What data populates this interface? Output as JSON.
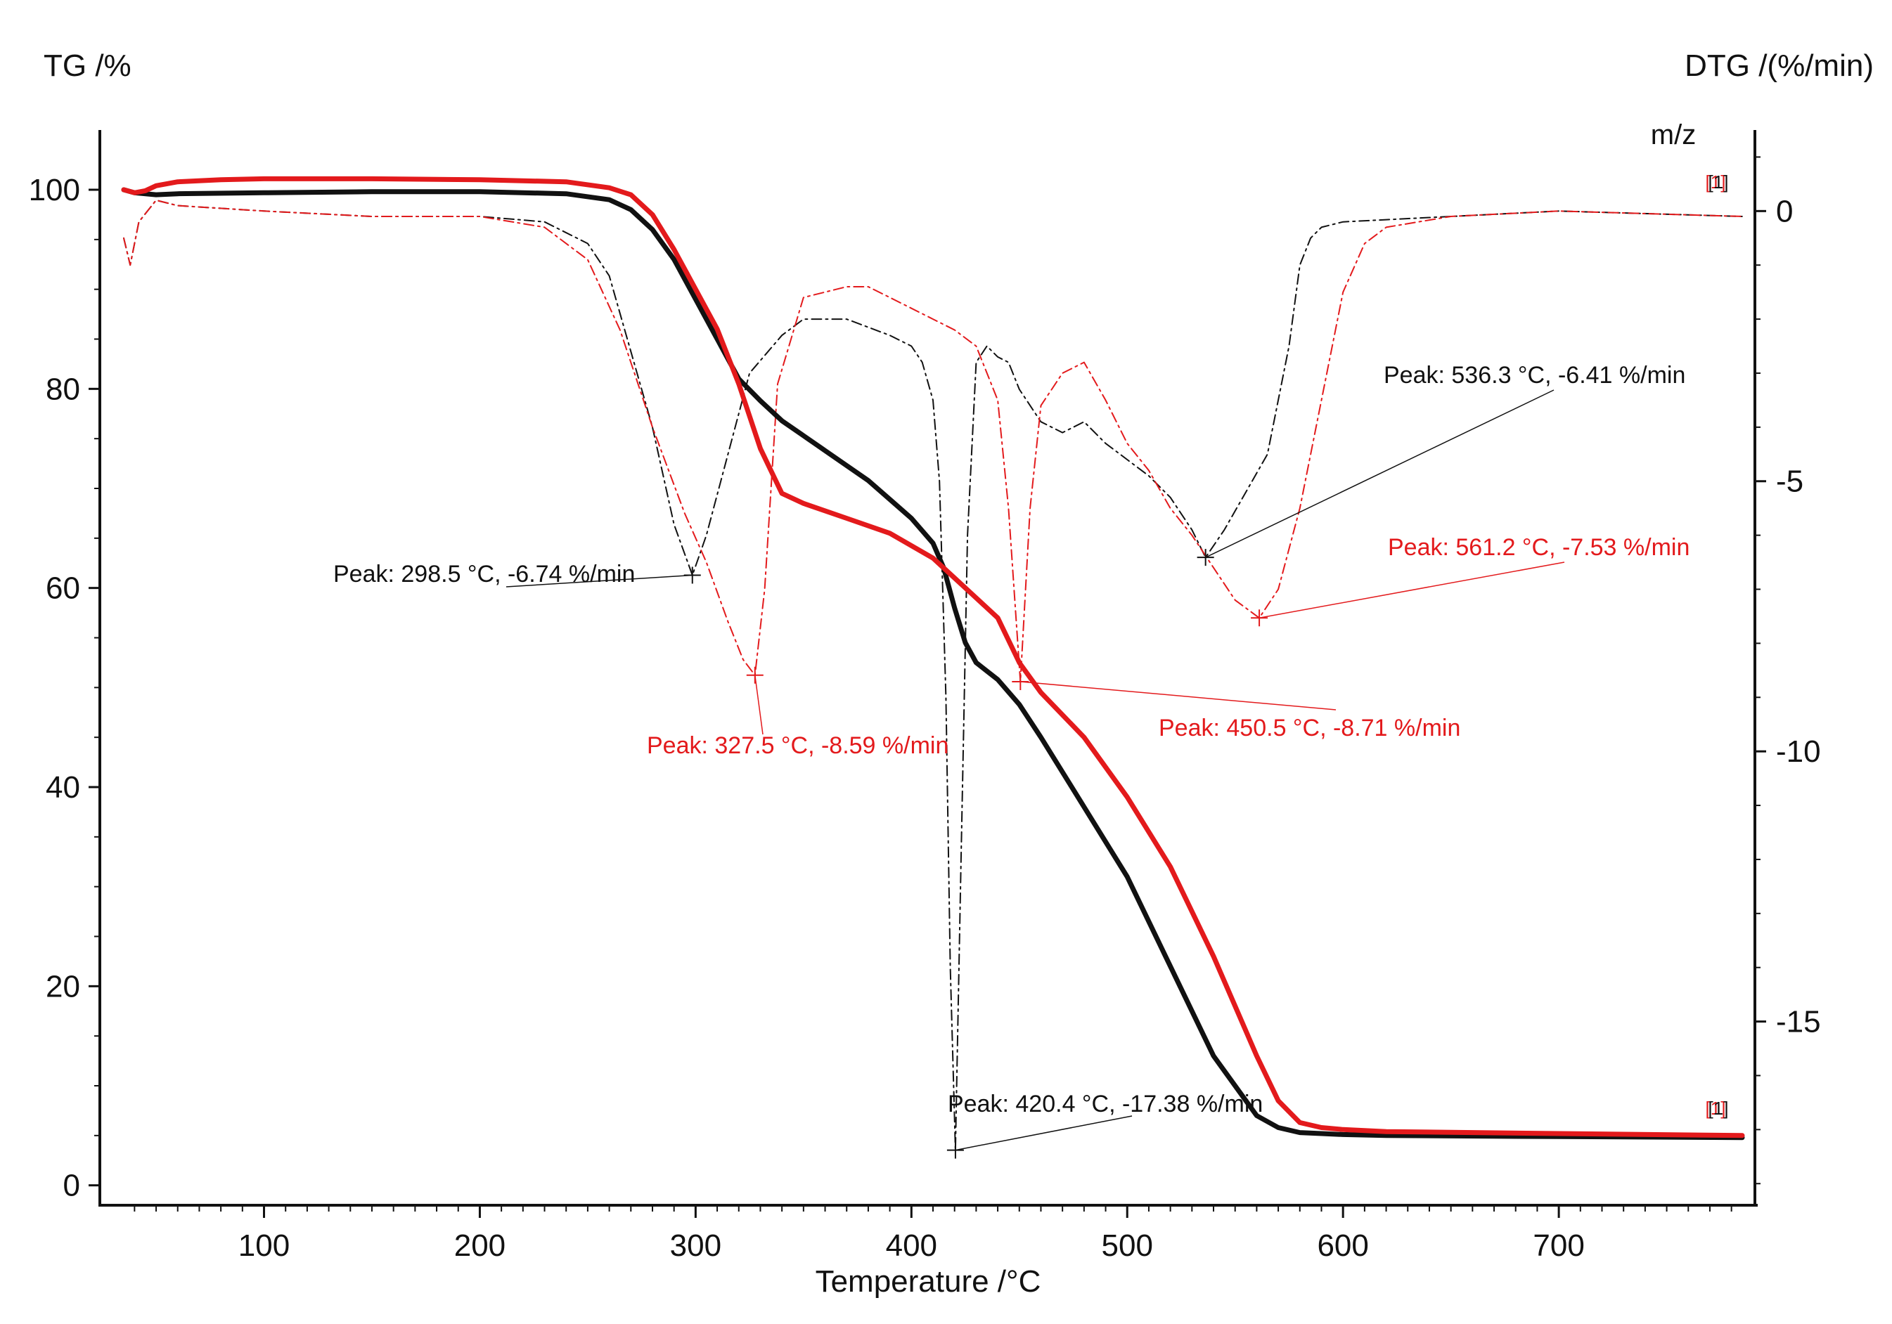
{
  "chart_data": {
    "type": "line",
    "title": "",
    "xlabel": "Temperature /°C",
    "ylabel_left": "TG /%",
    "ylabel_right": "DTG /(%/min)",
    "right_axis_note": "m/z",
    "xlim": [
      35,
      785
    ],
    "ylim_left": [
      -2,
      106
    ],
    "ylim_right": [
      -18.4,
      1.5
    ],
    "x_ticks": [
      100,
      200,
      300,
      400,
      500,
      600,
      700
    ],
    "y_left_ticks": [
      0,
      20,
      40,
      60,
      80,
      100
    ],
    "y_right_ticks": [
      0,
      -5,
      -10,
      -15
    ],
    "end_markers": [
      "[1]",
      "[1]",
      "[1]",
      "[1]"
    ],
    "colors": {
      "black": "#111111",
      "red": "#e31a1c",
      "grid_axis": "#111111"
    },
    "series": [
      {
        "name": "TG black",
        "axis": "left",
        "style": "solid-thick",
        "color": "#111111",
        "x": [
          35,
          40,
          50,
          60,
          100,
          150,
          200,
          240,
          260,
          270,
          280,
          290,
          300,
          310,
          320,
          330,
          340,
          360,
          380,
          400,
          410,
          415,
          420,
          425,
          430,
          440,
          450,
          460,
          480,
          500,
          520,
          540,
          560,
          570,
          580,
          590,
          600,
          620,
          700,
          785
        ],
        "y": [
          100,
          99.7,
          99.5,
          99.6,
          99.7,
          99.8,
          99.8,
          99.6,
          99,
          98,
          96,
          93,
          89,
          85,
          81,
          78.8,
          76.8,
          73.8,
          70.8,
          67,
          64.5,
          62,
          58,
          54.5,
          52.5,
          50.8,
          48.3,
          45,
          38,
          31,
          22,
          13,
          7,
          5.8,
          5.3,
          5.2,
          5.1,
          5.0,
          4.9,
          4.8
        ]
      },
      {
        "name": "TG red",
        "axis": "left",
        "style": "solid-thick",
        "color": "#e31a1c",
        "x": [
          35,
          40,
          45,
          50,
          60,
          80,
          100,
          150,
          200,
          240,
          260,
          270,
          280,
          290,
          300,
          310,
          320,
          330,
          340,
          350,
          370,
          390,
          410,
          420,
          430,
          440,
          450,
          460,
          480,
          500,
          520,
          540,
          560,
          570,
          580,
          590,
          600,
          620,
          700,
          785
        ],
        "y": [
          100,
          99.7,
          99.9,
          100.4,
          100.8,
          101,
          101.1,
          101.1,
          101,
          100.8,
          100.2,
          99.5,
          97.5,
          94,
          90,
          86,
          80.5,
          74,
          69.5,
          68.5,
          67,
          65.5,
          63,
          61,
          59,
          57,
          52.5,
          49.5,
          45,
          39,
          32,
          23,
          13,
          8.5,
          6.3,
          5.8,
          5.6,
          5.4,
          5.2,
          5.0
        ]
      },
      {
        "name": "DTG black",
        "axis": "right",
        "style": "dashed",
        "color": "#111111",
        "peaks": [
          {
            "x": 298.5,
            "y": -6.74,
            "label": "Peak: 298.5 °C, -6.74 %/min"
          },
          {
            "x": 420.4,
            "y": -17.38,
            "label": "Peak: 420.4 °C, -17.38 %/min"
          },
          {
            "x": 536.3,
            "y": -6.41,
            "label": "Peak: 536.3 °C, -6.41 %/min"
          }
        ],
        "x": [
          35,
          38,
          42,
          50,
          60,
          100,
          150,
          200,
          230,
          250,
          260,
          270,
          280,
          290,
          298.5,
          305,
          315,
          325,
          340,
          350,
          370,
          390,
          400,
          405,
          410,
          413,
          416,
          418,
          420.4,
          423,
          426,
          430,
          435,
          440,
          445,
          450,
          460,
          470,
          480,
          490,
          500,
          510,
          520,
          530,
          536.3,
          545,
          555,
          565,
          575,
          580,
          585,
          590,
          600,
          650,
          700,
          785
        ],
        "y": [
          -0.5,
          -1.0,
          -0.2,
          0.2,
          0.1,
          0,
          -0.1,
          -0.1,
          -0.2,
          -0.6,
          -1.2,
          -2.6,
          -4.0,
          -5.8,
          -6.74,
          -6.0,
          -4.5,
          -3.0,
          -2.3,
          -2.0,
          -2.0,
          -2.3,
          -2.5,
          -2.8,
          -3.5,
          -5,
          -9,
          -14,
          -17.38,
          -12,
          -6,
          -2.8,
          -2.5,
          -2.7,
          -2.8,
          -3.3,
          -3.9,
          -4.1,
          -3.9,
          -4.3,
          -4.6,
          -4.9,
          -5.3,
          -5.9,
          -6.41,
          -5.9,
          -5.2,
          -4.5,
          -2.5,
          -1.0,
          -0.5,
          -0.3,
          -0.2,
          -0.1,
          0,
          -0.1
        ]
      },
      {
        "name": "DTG red",
        "axis": "right",
        "style": "dashed",
        "color": "#e31a1c",
        "peaks": [
          {
            "x": 327.5,
            "y": -8.59,
            "label": "Peak: 327.5 °C, -8.59 %/min"
          },
          {
            "x": 450.5,
            "y": -8.71,
            "label": "Peak: 450.5 °C, -8.71 %/min"
          },
          {
            "x": 561.2,
            "y": -7.53,
            "label": "Peak: 561.2 °C, -7.53 %/min"
          }
        ],
        "x": [
          35,
          38,
          42,
          50,
          60,
          100,
          150,
          200,
          230,
          250,
          265,
          280,
          295,
          305,
          315,
          322,
          327.5,
          332,
          338,
          350,
          370,
          380,
          390,
          410,
          420,
          430,
          440,
          445,
          450.5,
          455,
          460,
          470,
          480,
          490,
          500,
          510,
          520,
          530,
          540,
          550,
          561.2,
          570,
          580,
          590,
          600,
          610,
          620,
          650,
          700,
          785
        ],
        "y": [
          -0.5,
          -1.0,
          -0.2,
          0.2,
          0.1,
          0,
          -0.1,
          -0.1,
          -0.3,
          -0.9,
          -2.2,
          -4.0,
          -5.6,
          -6.5,
          -7.6,
          -8.3,
          -8.59,
          -7.0,
          -3.2,
          -1.6,
          -1.4,
          -1.4,
          -1.6,
          -2.0,
          -2.2,
          -2.5,
          -3.5,
          -5.5,
          -8.71,
          -5.5,
          -3.6,
          -3.0,
          -2.8,
          -3.5,
          -4.3,
          -4.8,
          -5.5,
          -6.0,
          -6.6,
          -7.2,
          -7.53,
          -7.0,
          -5.5,
          -3.5,
          -1.5,
          -0.6,
          -0.3,
          -0.1,
          0,
          -0.1
        ]
      }
    ]
  }
}
